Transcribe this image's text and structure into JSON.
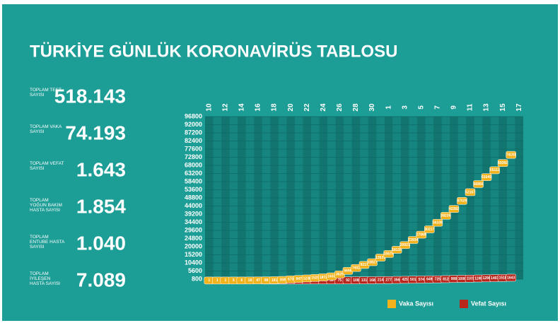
{
  "header": {
    "title": "TÜRKİYE GÜNLÜK KORONAVİRÜS TABLOSU"
  },
  "stats": [
    {
      "label": "TOPLAM TEST SAYISI",
      "value": "518.143"
    },
    {
      "label": "TOPLAM VAKA SAYISI",
      "value": "74.193"
    },
    {
      "label": "TOPLAM VEFAT SAYISI",
      "value": "1.643"
    },
    {
      "label": "TOPLAM YOĞUN BAKIM HASTA SAYISI",
      "value": "1.854"
    },
    {
      "label": "TOPLAM ENTUBE HASTA SAYISI",
      "value": "1.040"
    },
    {
      "label": "TOPLAM İYİLEŞEN HASTA SAYISI",
      "value": "7.089"
    }
  ],
  "chart_data": {
    "type": "boxline",
    "categories": [
      "10",
      null,
      "12",
      null,
      "14",
      null,
      "16",
      null,
      "18",
      null,
      "20",
      null,
      "22",
      null,
      "24",
      null,
      "26",
      null,
      "28",
      null,
      "30",
      null,
      "1",
      null,
      "3",
      null,
      "5",
      null,
      "7",
      null,
      "9",
      null,
      "11",
      null,
      "13",
      null,
      "15",
      null,
      "17"
    ],
    "series": [
      {
        "name": "Vefat Sayısı",
        "color": "#b8261c",
        "values": [
          null,
          null,
          null,
          null,
          null,
          null,
          null,
          1,
          2,
          3,
          4,
          9,
          30,
          37,
          44,
          59,
          75,
          92,
          108,
          131,
          168,
          214,
          277,
          356,
          425,
          501,
          574,
          649,
          725,
          812,
          908,
          1006,
          1101,
          1198,
          1296,
          1403,
          1518,
          1643,
          null
        ]
      },
      {
        "name": "Vaka Sayısı",
        "color": "#f2b21c",
        "values": [
          1,
          1,
          1,
          5,
          6,
          18,
          47,
          98,
          191,
          359,
          670,
          947,
          1236,
          1529,
          1872,
          2433,
          3629,
          5698,
          7402,
          9217,
          10827,
          13531,
          15679,
          18135,
          20921,
          23934,
          27069,
          30217,
          34109,
          38226,
          42282,
          47029,
          52167,
          56956,
          61049,
          65111,
          69392,
          74193,
          null
        ]
      }
    ],
    "ylim": [
      800,
      96800
    ],
    "yticks": [
      800,
      5600,
      10400,
      15200,
      20000,
      24800,
      29600,
      34400,
      39200,
      44000,
      48800,
      53600,
      58400,
      63200,
      68000,
      72800,
      77600,
      82400,
      87200,
      92000,
      96800
    ],
    "grid": true,
    "legend": "bottom-right"
  }
}
